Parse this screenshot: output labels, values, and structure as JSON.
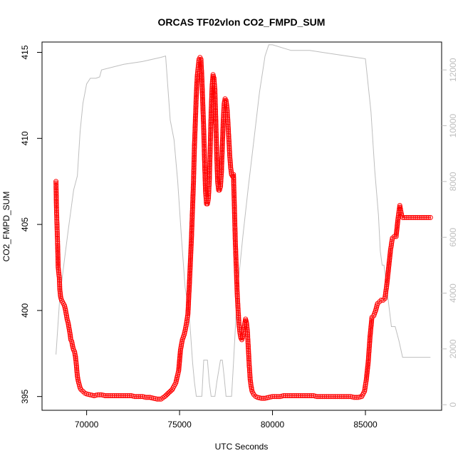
{
  "chart_data": {
    "type": "scatter",
    "title": "ORCAS TF02vlon CO2_FMPD_SUM",
    "xlabel": "UTC Seconds",
    "ylabel": "CO2_FMPD_SUM",
    "xlim": [
      67600,
      89100
    ],
    "ylim": [
      394.2,
      415.6
    ],
    "x_ticks": [
      70000,
      75000,
      80000,
      85000
    ],
    "y_ticks": [
      395,
      400,
      405,
      410,
      415
    ],
    "y2lim": [
      -200,
      13000
    ],
    "y2_ticks": [
      0,
      2000,
      4000,
      6000,
      8000,
      10000,
      12000
    ],
    "colors": {
      "co2": "#ff0000",
      "altitude": "#bebebe"
    },
    "series": [
      {
        "style": "points",
        "color": "#ff0000",
        "points": [
          [
            68350,
            407.5
          ],
          [
            68380,
            405.8
          ],
          [
            68410,
            404.8
          ],
          [
            68440,
            403.8
          ],
          [
            68470,
            402.5
          ],
          [
            68500,
            402.2
          ],
          [
            68530,
            401.9
          ],
          [
            68560,
            401.2
          ],
          [
            68600,
            400.8
          ],
          [
            68650,
            400.6
          ],
          [
            68700,
            400.5
          ],
          [
            68750,
            400.4
          ],
          [
            68800,
            400.3
          ],
          [
            68850,
            400.1
          ],
          [
            68900,
            399.8
          ],
          [
            68950,
            399.5
          ],
          [
            69000,
            399.3
          ],
          [
            69050,
            399.0
          ],
          [
            69100,
            398.7
          ],
          [
            69150,
            398.3
          ],
          [
            69200,
            398.2
          ],
          [
            69250,
            397.9
          ],
          [
            69300,
            397.7
          ],
          [
            69350,
            397.6
          ],
          [
            69400,
            397.3
          ],
          [
            69450,
            396.8
          ],
          [
            69500,
            396.2
          ],
          [
            69550,
            395.9
          ],
          [
            69600,
            395.7
          ],
          [
            69650,
            395.5
          ],
          [
            69700,
            395.4
          ],
          [
            69800,
            395.3
          ],
          [
            69900,
            395.2
          ],
          [
            70000,
            395.15
          ],
          [
            70200,
            395.1
          ],
          [
            70400,
            395.05
          ],
          [
            70600,
            395.1
          ],
          [
            70800,
            395.1
          ],
          [
            71000,
            395.05
          ],
          [
            71200,
            395.05
          ],
          [
            71400,
            395.05
          ],
          [
            71600,
            395.05
          ],
          [
            71800,
            395.05
          ],
          [
            72000,
            395.05
          ],
          [
            72200,
            395.05
          ],
          [
            72400,
            395.05
          ],
          [
            72600,
            395.0
          ],
          [
            72800,
            395.0
          ],
          [
            73000,
            395.0
          ],
          [
            73200,
            394.95
          ],
          [
            73400,
            394.95
          ],
          [
            73600,
            394.9
          ],
          [
            73800,
            394.85
          ],
          [
            74000,
            394.85
          ],
          [
            74200,
            395.0
          ],
          [
            74400,
            395.2
          ],
          [
            74600,
            395.4
          ],
          [
            74800,
            395.8
          ],
          [
            74950,
            396.5
          ],
          [
            75050,
            397.7
          ],
          [
            75150,
            398.3
          ],
          [
            75250,
            398.6
          ],
          [
            75350,
            399.1
          ],
          [
            75450,
            399.8
          ],
          [
            75550,
            402.0
          ],
          [
            75650,
            404.5
          ],
          [
            75700,
            406.0
          ],
          [
            75750,
            407.5
          ],
          [
            75800,
            409.5
          ],
          [
            75850,
            411.0
          ],
          [
            75900,
            412.5
          ],
          [
            75950,
            413.6
          ],
          [
            76000,
            414.1
          ],
          [
            76050,
            414.6
          ],
          [
            76100,
            414.7
          ],
          [
            76150,
            414.6
          ],
          [
            76200,
            413.5
          ],
          [
            76250,
            412.0
          ],
          [
            76300,
            410.5
          ],
          [
            76350,
            408.5
          ],
          [
            76400,
            406.9
          ],
          [
            76450,
            406.2
          ],
          [
            76500,
            406.2
          ],
          [
            76550,
            406.5
          ],
          [
            76600,
            407.5
          ],
          [
            76650,
            409.5
          ],
          [
            76700,
            411.5
          ],
          [
            76750,
            413.0
          ],
          [
            76800,
            413.7
          ],
          [
            76850,
            413.5
          ],
          [
            76900,
            412.8
          ],
          [
            76950,
            411.0
          ],
          [
            77000,
            409.0
          ],
          [
            77050,
            407.5
          ],
          [
            77100,
            407.0
          ],
          [
            77150,
            407.0
          ],
          [
            77200,
            407.2
          ],
          [
            77250,
            408.0
          ],
          [
            77300,
            409.5
          ],
          [
            77350,
            411.0
          ],
          [
            77400,
            412.0
          ],
          [
            77450,
            412.3
          ],
          [
            77500,
            412.2
          ],
          [
            77550,
            411.8
          ],
          [
            77600,
            411.0
          ],
          [
            77650,
            410.0
          ],
          [
            77700,
            409.0
          ],
          [
            77750,
            408.3
          ],
          [
            77800,
            407.9
          ],
          [
            77850,
            407.8
          ],
          [
            77900,
            407.9
          ],
          [
            77950,
            406.0
          ],
          [
            78000,
            404.0
          ],
          [
            78050,
            402.5
          ],
          [
            78100,
            401.0
          ],
          [
            78150,
            400.0
          ],
          [
            78200,
            399.2
          ],
          [
            78250,
            398.7
          ],
          [
            78300,
            398.4
          ],
          [
            78350,
            398.3
          ],
          [
            78400,
            398.5
          ],
          [
            78450,
            398.8
          ],
          [
            78500,
            399.2
          ],
          [
            78550,
            399.5
          ],
          [
            78600,
            399.3
          ],
          [
            78650,
            398.8
          ],
          [
            78700,
            397.8
          ],
          [
            78750,
            396.8
          ],
          [
            78800,
            396.0
          ],
          [
            78850,
            395.6
          ],
          [
            78900,
            395.3
          ],
          [
            79000,
            395.1
          ],
          [
            79100,
            395.0
          ],
          [
            79200,
            394.95
          ],
          [
            79400,
            394.9
          ],
          [
            79600,
            394.9
          ],
          [
            79800,
            394.95
          ],
          [
            80000,
            395.0
          ],
          [
            80200,
            395.0
          ],
          [
            80400,
            395.0
          ],
          [
            80600,
            395.05
          ],
          [
            80800,
            395.05
          ],
          [
            81000,
            395.05
          ],
          [
            81200,
            395.05
          ],
          [
            81400,
            395.05
          ],
          [
            81600,
            395.05
          ],
          [
            81800,
            395.05
          ],
          [
            82000,
            395.05
          ],
          [
            82200,
            395.05
          ],
          [
            82400,
            395.0
          ],
          [
            82600,
            395.0
          ],
          [
            82800,
            395.0
          ],
          [
            83000,
            395.0
          ],
          [
            83200,
            395.0
          ],
          [
            83400,
            395.0
          ],
          [
            83600,
            395.0
          ],
          [
            83800,
            395.0
          ],
          [
            84000,
            395.0
          ],
          [
            84200,
            395.0
          ],
          [
            84400,
            394.95
          ],
          [
            84600,
            394.95
          ],
          [
            84800,
            395.0
          ],
          [
            84950,
            395.3
          ],
          [
            85050,
            396.0
          ],
          [
            85150,
            397.0
          ],
          [
            85250,
            398.5
          ],
          [
            85350,
            399.6
          ],
          [
            85450,
            399.7
          ],
          [
            85550,
            400.0
          ],
          [
            85650,
            400.4
          ],
          [
            85750,
            400.5
          ],
          [
            85850,
            400.6
          ],
          [
            85950,
            400.6
          ],
          [
            86050,
            400.7
          ],
          [
            86150,
            401.5
          ],
          [
            86250,
            402.5
          ],
          [
            86350,
            403.5
          ],
          [
            86450,
            404.2
          ],
          [
            86550,
            404.3
          ],
          [
            86650,
            404.3
          ],
          [
            86750,
            405.3
          ],
          [
            86850,
            406.1
          ],
          [
            86900,
            405.8
          ],
          [
            86950,
            405.5
          ],
          [
            87000,
            405.4
          ],
          [
            87200,
            405.4
          ],
          [
            87400,
            405.4
          ],
          [
            87600,
            405.4
          ],
          [
            87800,
            405.4
          ],
          [
            88000,
            405.4
          ],
          [
            88200,
            405.4
          ],
          [
            88400,
            405.4
          ],
          [
            88500,
            405.4
          ]
        ]
      },
      {
        "style": "line",
        "color": "#bebebe",
        "axis": "right",
        "points": [
          [
            68350,
            1800
          ],
          [
            68550,
            3800
          ],
          [
            68750,
            4900
          ],
          [
            69000,
            6200
          ],
          [
            69300,
            7700
          ],
          [
            69500,
            8200
          ],
          [
            69650,
            9800
          ],
          [
            69800,
            10800
          ],
          [
            70000,
            11500
          ],
          [
            70200,
            11700
          ],
          [
            70500,
            11700
          ],
          [
            70700,
            11750
          ],
          [
            70800,
            12000
          ],
          [
            72000,
            12200
          ],
          [
            73000,
            12300
          ],
          [
            74000,
            12450
          ],
          [
            74250,
            12500
          ],
          [
            74500,
            10200
          ],
          [
            74700,
            9500
          ],
          [
            74900,
            8000
          ],
          [
            75100,
            6000
          ],
          [
            75300,
            4200
          ],
          [
            75500,
            3400
          ],
          [
            75600,
            2500
          ],
          [
            75700,
            1500
          ],
          [
            75800,
            800
          ],
          [
            75900,
            300
          ],
          [
            76000,
            300
          ],
          [
            76100,
            300
          ],
          [
            76200,
            300
          ],
          [
            76300,
            1600
          ],
          [
            76500,
            1600
          ],
          [
            76600,
            800
          ],
          [
            76700,
            300
          ],
          [
            76800,
            300
          ],
          [
            76900,
            300
          ],
          [
            77000,
            800
          ],
          [
            77200,
            1600
          ],
          [
            77300,
            1600
          ],
          [
            77400,
            1000
          ],
          [
            77500,
            300
          ],
          [
            77600,
            300
          ],
          [
            77700,
            300
          ],
          [
            77800,
            300
          ],
          [
            77900,
            1500
          ],
          [
            78100,
            4000
          ],
          [
            78400,
            6000
          ],
          [
            78700,
            7800
          ],
          [
            79000,
            9500
          ],
          [
            79300,
            11200
          ],
          [
            79600,
            12500
          ],
          [
            79800,
            12900
          ],
          [
            80000,
            12900
          ],
          [
            81000,
            12700
          ],
          [
            82000,
            12700
          ],
          [
            83000,
            12600
          ],
          [
            84000,
            12500
          ],
          [
            85000,
            12400
          ],
          [
            85300,
            10500
          ],
          [
            85500,
            8400
          ],
          [
            85700,
            6800
          ],
          [
            85800,
            5500
          ],
          [
            85900,
            5000
          ],
          [
            86000,
            5000
          ],
          [
            86200,
            3900
          ],
          [
            86400,
            2800
          ],
          [
            86600,
            2800
          ],
          [
            86800,
            2300
          ],
          [
            87000,
            1700
          ],
          [
            87200,
            1700
          ],
          [
            88500,
            1700
          ]
        ]
      }
    ]
  }
}
